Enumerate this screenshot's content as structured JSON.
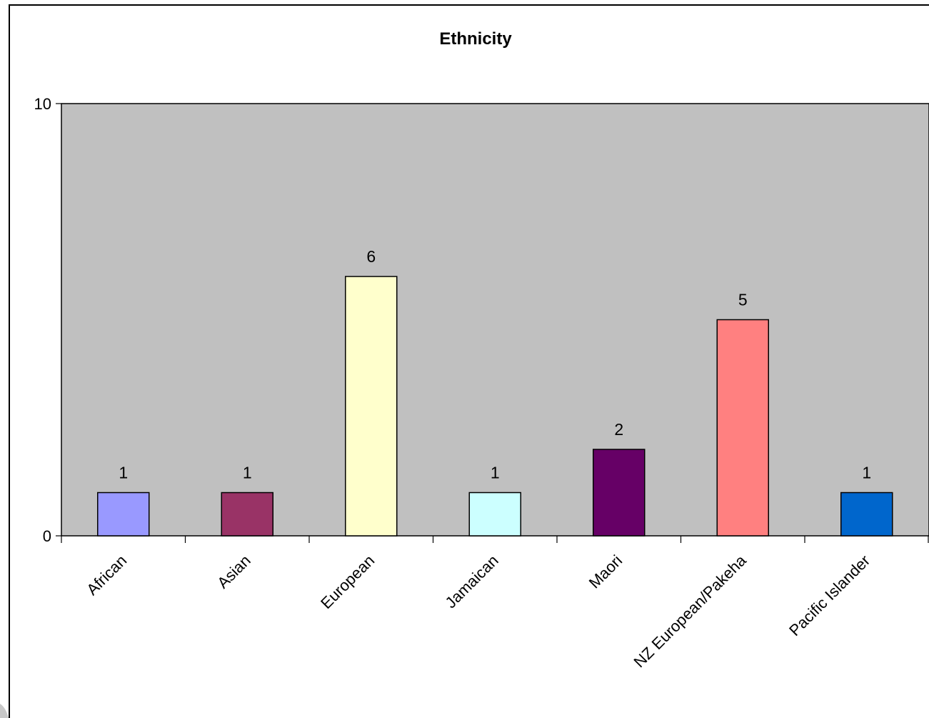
{
  "chart_data": {
    "type": "bar",
    "title": "Ethnicity",
    "xlabel": "",
    "ylabel": "",
    "categories": [
      "African",
      "Asian",
      "European",
      "Jamaican",
      "Maori",
      "NZ European/Pakeha",
      "Pacific Islander"
    ],
    "values": [
      1,
      1,
      6,
      1,
      2,
      5,
      1
    ],
    "data_labels": [
      "1",
      "1",
      "6",
      "1",
      "2",
      "5",
      "1"
    ],
    "bar_colors": [
      "#9999FF",
      "#993366",
      "#FFFFCC",
      "#CCFFFF",
      "#660066",
      "#FF8080",
      "#0066CC"
    ],
    "ylim": [
      0,
      10
    ],
    "yticks": [
      "0",
      "10"
    ],
    "plot_background": "#C0C0C0",
    "grid": false,
    "legend": "none"
  }
}
